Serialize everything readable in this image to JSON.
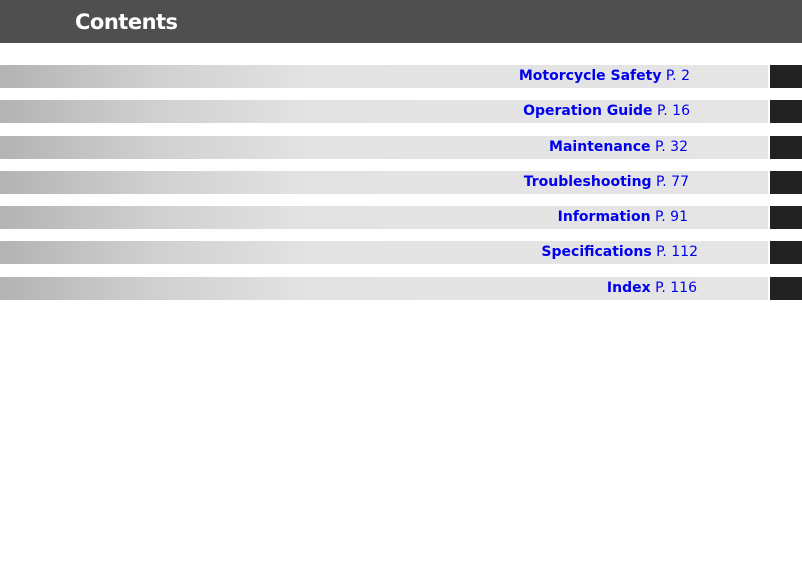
{
  "header": {
    "title": "Contents"
  },
  "items": [
    {
      "label": "Motorcycle Safety",
      "page": "P. 2"
    },
    {
      "label": "Operation Guide",
      "page": "P. 16"
    },
    {
      "label": "Maintenance",
      "page": "P. 32"
    },
    {
      "label": "Troubleshooting",
      "page": "P. 77"
    },
    {
      "label": "Information",
      "page": "P. 91"
    },
    {
      "label": "Specifications",
      "page": "P. 112"
    },
    {
      "label": "Index",
      "page": "P. 116"
    }
  ],
  "colors": {
    "header": "#4f4f4f",
    "link": "#0000ee",
    "tab": "#222222"
  }
}
